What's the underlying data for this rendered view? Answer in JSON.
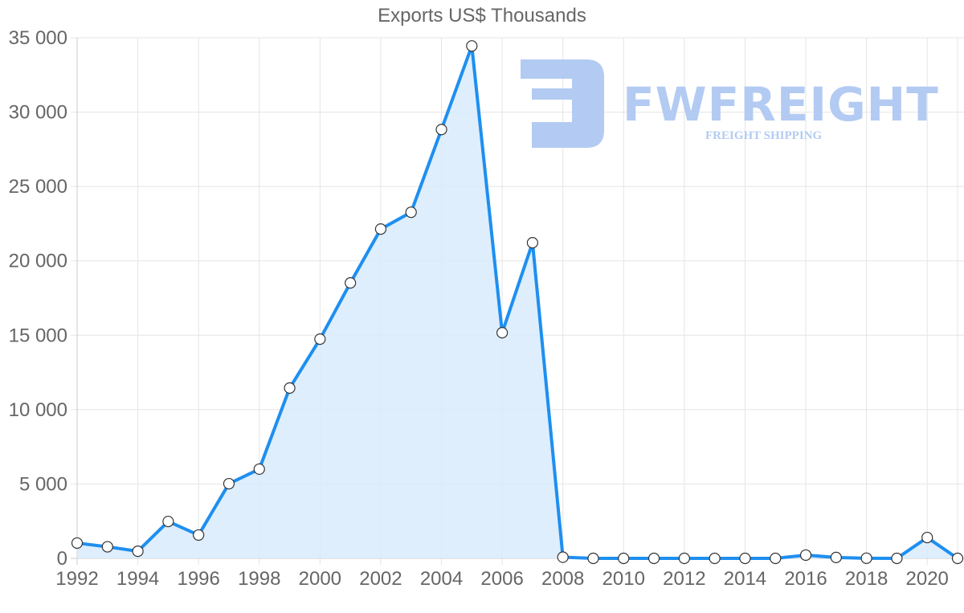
{
  "chart_data": {
    "type": "area",
    "title": "Exports US$ Thousands",
    "xlabel": "",
    "ylabel": "",
    "x": [
      1992,
      1993,
      1994,
      1995,
      1996,
      1997,
      1998,
      1999,
      2000,
      2001,
      2002,
      2003,
      2004,
      2005,
      2006,
      2007,
      2008,
      2009,
      2010,
      2011,
      2012,
      2013,
      2014,
      2015,
      2016,
      2017,
      2018,
      2019,
      2020,
      2021
    ],
    "series": [
      {
        "name": "Exports US$ Thousands",
        "values": [
          1030,
          780,
          480,
          2480,
          1570,
          5020,
          6000,
          11450,
          14740,
          18520,
          22140,
          23270,
          28830,
          34450,
          15170,
          21220,
          80,
          0,
          0,
          0,
          0,
          0,
          0,
          0,
          220,
          60,
          10,
          0,
          1400,
          0
        ]
      }
    ],
    "ylim": [
      0,
      35000
    ],
    "yticks": [
      0,
      5000,
      10000,
      15000,
      20000,
      25000,
      30000,
      35000
    ],
    "ytick_labels": [
      "0",
      "5 000",
      "10 000",
      "15 000",
      "20 000",
      "25 000",
      "30 000",
      "35 000"
    ],
    "xtick_labels": [
      "1992",
      "1994",
      "1996",
      "1998",
      "2000",
      "2002",
      "2004",
      "2006",
      "2008",
      "2010",
      "2012",
      "2014",
      "2016",
      "2018",
      "2020"
    ],
    "grid": true,
    "legend": "none",
    "colors": {
      "line": "#1e8ff0",
      "fill": "#d8ebfc",
      "grid": "#e5e5e5",
      "point_fill": "#ffffff",
      "point_stroke": "#333333"
    }
  },
  "watermark": {
    "brand": "FWFREIGHT",
    "tagline": "FREIGHT SHIPPING"
  }
}
